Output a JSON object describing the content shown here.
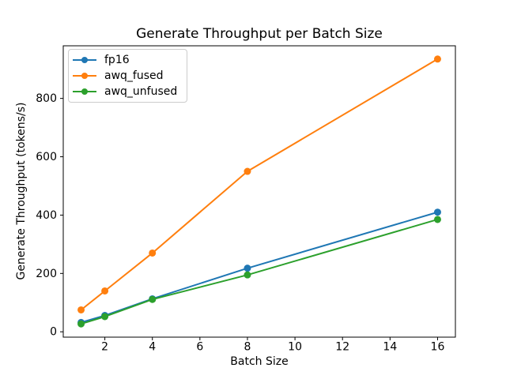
{
  "chart_data": {
    "type": "line",
    "title": "Generate Throughput per Batch Size",
    "xlabel": "Batch Size",
    "ylabel": "Generate Throughput (tokens/s)",
    "x": [
      1,
      2,
      4,
      8,
      16
    ],
    "series": [
      {
        "name": "fp16",
        "color": "#1f77b4",
        "values": [
          32,
          56,
          113,
          218,
          410
        ]
      },
      {
        "name": "awq_fused",
        "color": "#ff7f0e",
        "values": [
          75,
          140,
          270,
          550,
          935
        ]
      },
      {
        "name": "awq_unfused",
        "color": "#2ca02c",
        "values": [
          27,
          52,
          111,
          195,
          385
        ]
      }
    ],
    "xticks": [
      2,
      4,
      6,
      8,
      10,
      12,
      14,
      16
    ],
    "yticks": [
      0,
      200,
      400,
      600,
      800
    ],
    "xlim": [
      0.25,
      16.75
    ],
    "ylim": [
      -18.4,
      980.4
    ],
    "legend_position": "upper left",
    "grid": false,
    "marker": "o",
    "axis_color": "#000000",
    "background": "#ffffff"
  }
}
